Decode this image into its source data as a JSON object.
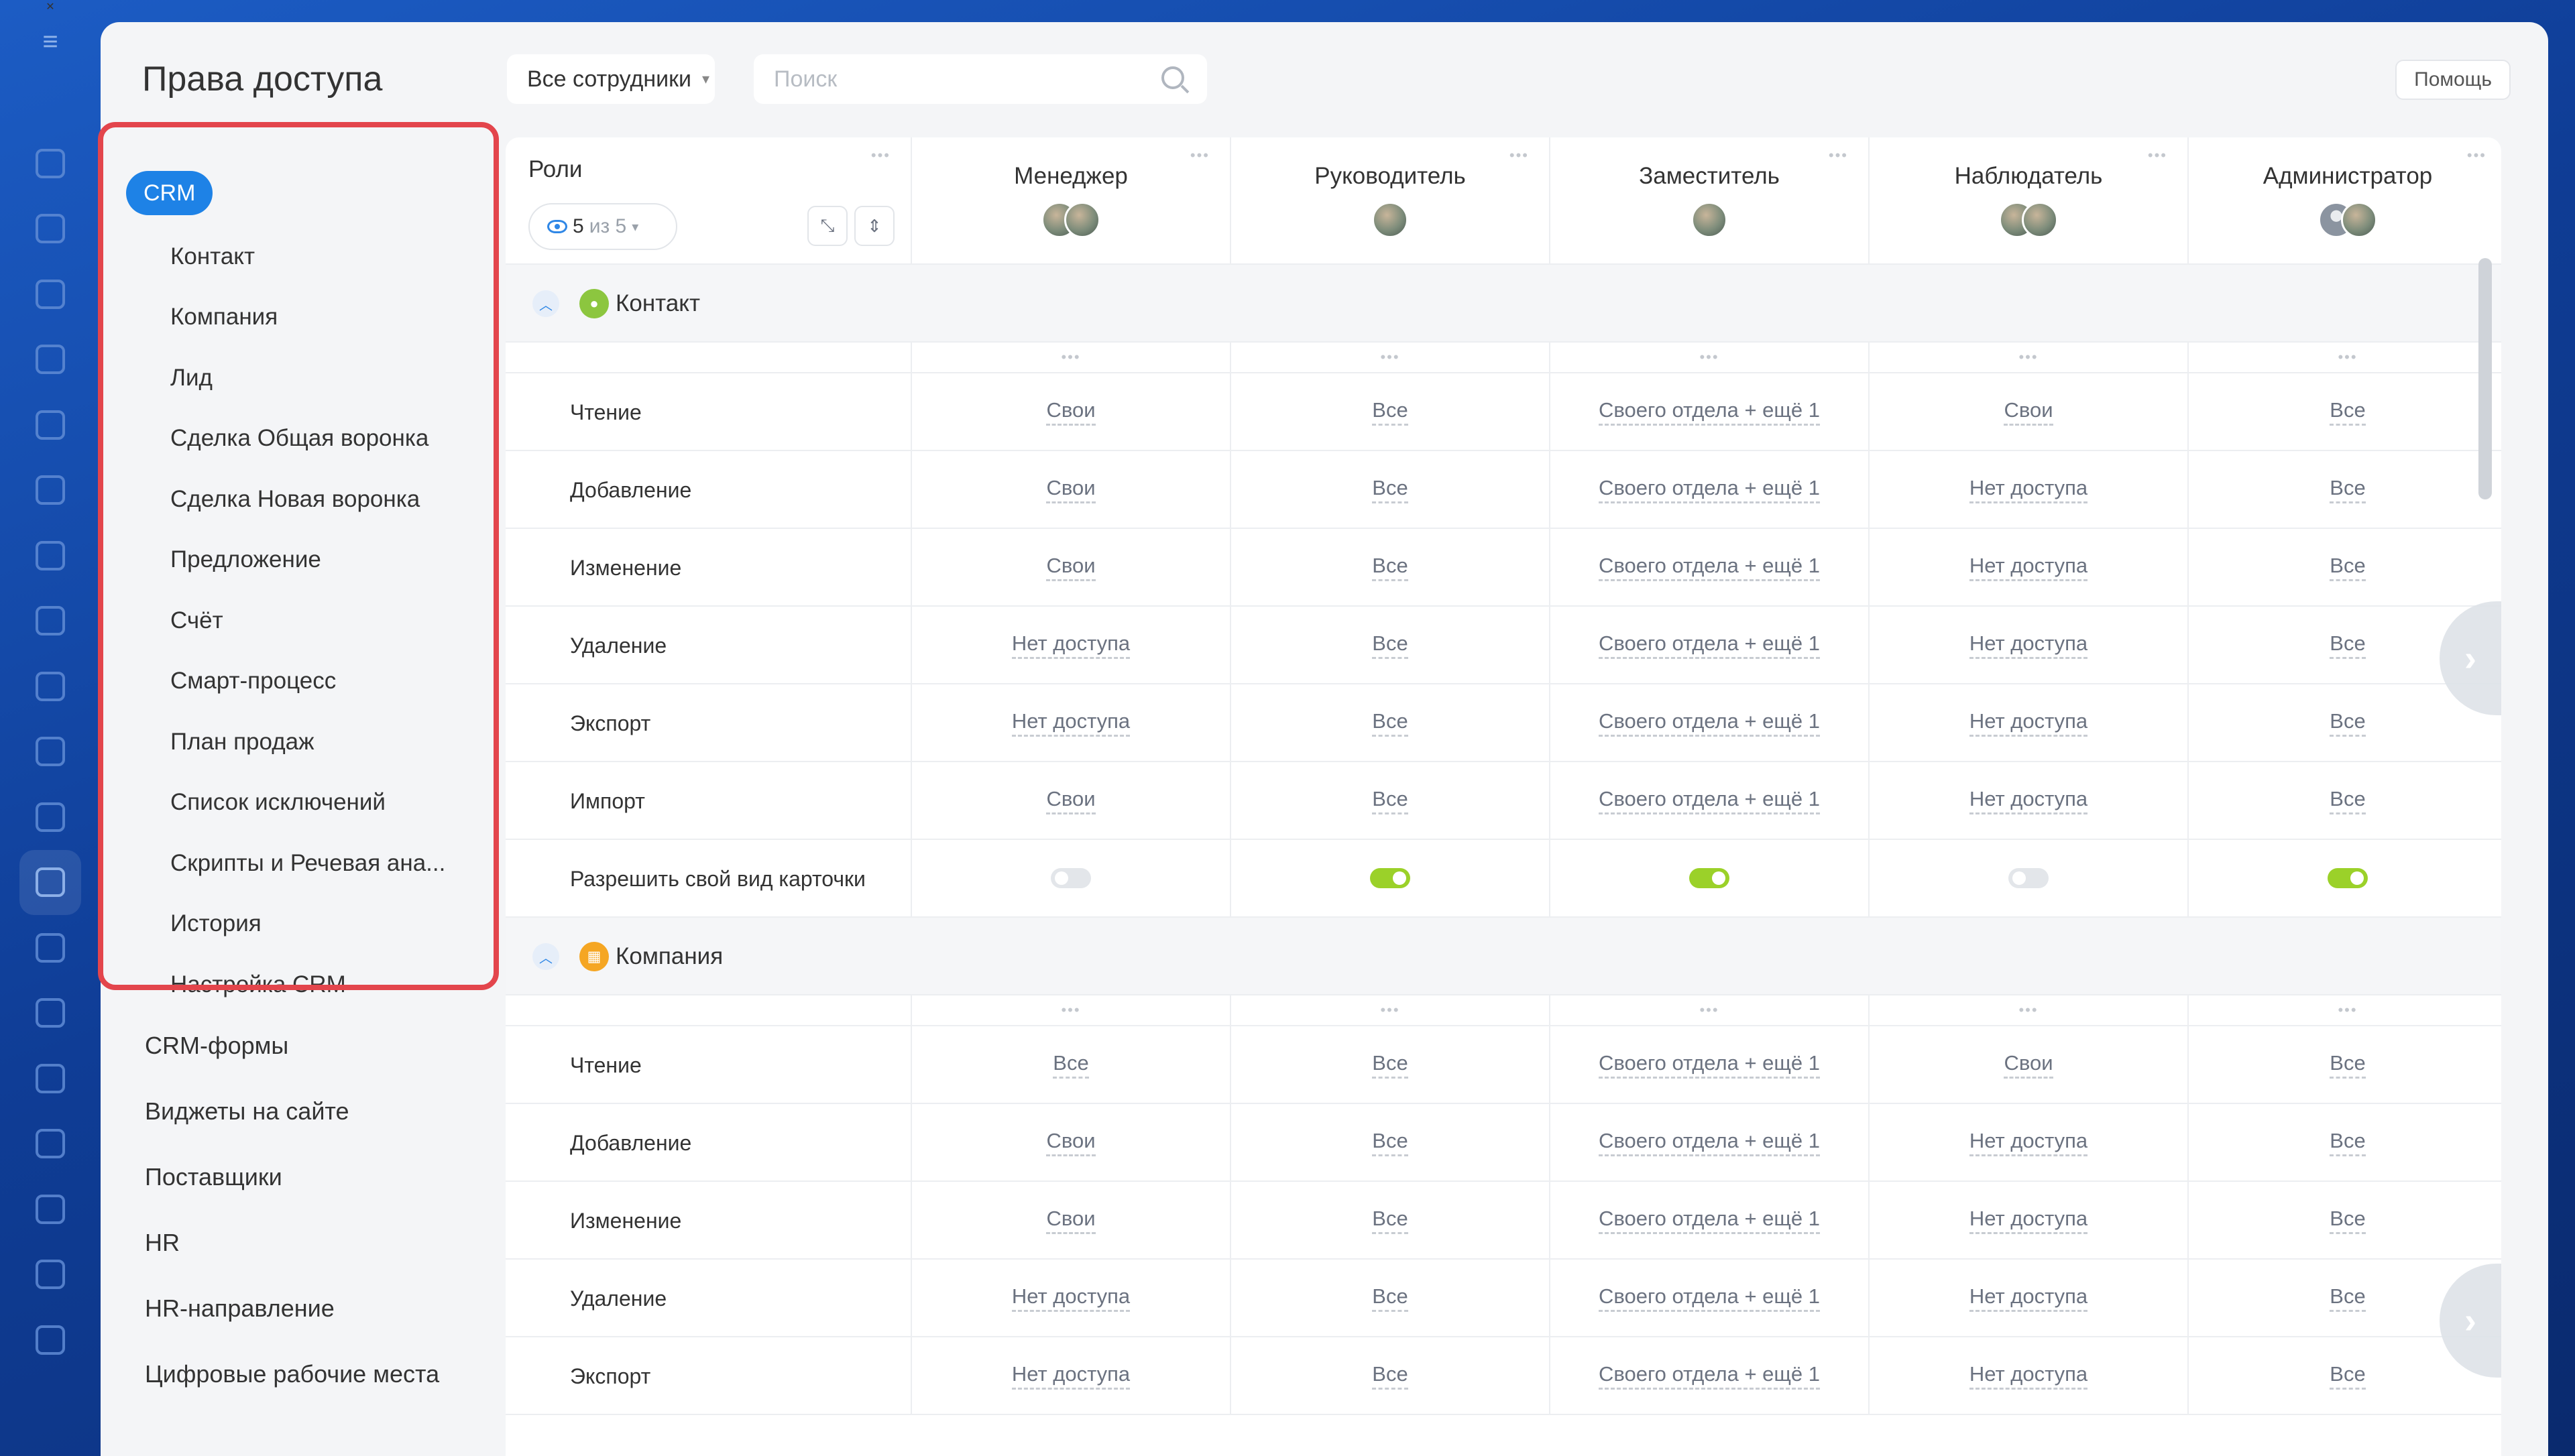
{
  "app": {
    "title": "Права доступа",
    "filter_label": "Все сотрудники",
    "search_placeholder": "Поиск",
    "help_label": "Помощь"
  },
  "nav": {
    "crm_label": "CRM",
    "crm_items": [
      "Контакт",
      "Компания",
      "Лид",
      "Сделка Общая воронка",
      "Сделка Новая воронка",
      "Предложение",
      "Счёт",
      "Смарт-процесс",
      "План продаж",
      "Список исключений",
      "Скрипты и Речевая ана...",
      "История",
      "Настройка CRM"
    ],
    "other_items": [
      "CRM-формы",
      "Виджеты на сайте",
      "Поставщики",
      "HR",
      "HR-направление",
      "Цифровые рабочие места"
    ]
  },
  "table": {
    "roles_label": "Роли",
    "visible_count": "5",
    "visible_total": "из 5",
    "roles": [
      "Менеджер",
      "Руководитель",
      "Заместитель",
      "Наблюдатель",
      "Администратор"
    ],
    "sections": [
      {
        "label": "Контакт",
        "rows": [
          {
            "label": "Чтение",
            "values": [
              "Свои",
              "Все",
              "Своего отдела + ещё 1",
              "Свои",
              "Все"
            ]
          },
          {
            "label": "Добавление",
            "values": [
              "Свои",
              "Все",
              "Своего отдела + ещё 1",
              "Нет доступа",
              "Все"
            ]
          },
          {
            "label": "Изменение",
            "values": [
              "Свои",
              "Все",
              "Своего отдела + ещё 1",
              "Нет доступа",
              "Все"
            ]
          },
          {
            "label": "Удаление",
            "values": [
              "Нет доступа",
              "Все",
              "Своего отдела + ещё 1",
              "Нет доступа",
              "Все"
            ]
          },
          {
            "label": "Экспорт",
            "values": [
              "Нет доступа",
              "Все",
              "Своего отдела + ещё 1",
              "Нет доступа",
              "Все"
            ]
          },
          {
            "label": "Импорт",
            "values": [
              "Свои",
              "Все",
              "Своего отдела + ещё 1",
              "Нет доступа",
              "Все"
            ]
          }
        ],
        "toggle_row": {
          "label": "Разрешить свой вид карточки",
          "states": [
            false,
            true,
            true,
            false,
            true
          ]
        }
      },
      {
        "label": "Компания",
        "rows": [
          {
            "label": "Чтение",
            "values": [
              "Все",
              "Все",
              "Своего отдела + ещё 1",
              "Свои",
              "Все"
            ]
          },
          {
            "label": "Добавление",
            "values": [
              "Свои",
              "Все",
              "Своего отдела + ещё 1",
              "Нет доступа",
              "Все"
            ]
          },
          {
            "label": "Изменение",
            "values": [
              "Свои",
              "Все",
              "Своего отдела + ещё 1",
              "Нет доступа",
              "Все"
            ]
          },
          {
            "label": "Удаление",
            "values": [
              "Нет доступа",
              "Все",
              "Своего отдела + ещё 1",
              "Нет доступа",
              "Все"
            ]
          },
          {
            "label": "Экспорт",
            "values": [
              "Нет доступа",
              "Все",
              "Своего отдела + ещё 1",
              "Нет доступа",
              "Все"
            ]
          }
        ]
      }
    ]
  },
  "colors": {
    "accent": "#1e82e6",
    "highlight_border": "#e3454c",
    "toggle_on": "#9bd129",
    "contact_icon": "#8cc63f",
    "company_icon": "#f5a623"
  }
}
